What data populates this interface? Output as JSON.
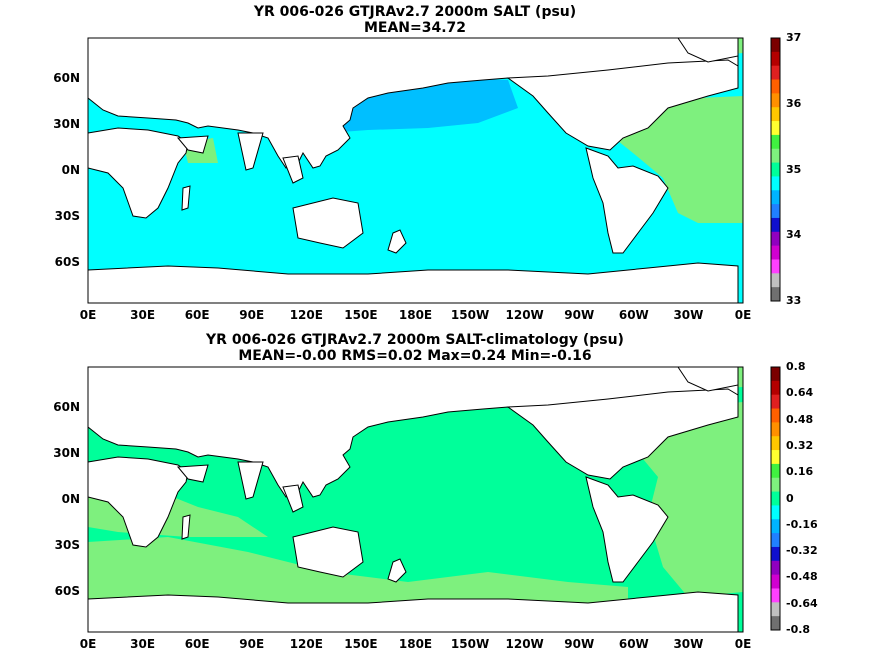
{
  "panel_top": {
    "title_line1": "YR 006-026 GTJRAv2.7 2000m SALT (psu)",
    "title_line2": "MEAN=34.72",
    "y_ticks": [
      "60N",
      "30N",
      "0N",
      "30S",
      "60S"
    ],
    "x_ticks": [
      "0E",
      "30E",
      "60E",
      "90E",
      "120E",
      "150E",
      "180E",
      "150W",
      "120W",
      "90W",
      "60W",
      "30W",
      "0E"
    ],
    "colorbar_labels": [
      "37",
      "36",
      "35",
      "34",
      "33"
    ],
    "colorbar_colors": [
      "#7a0000",
      "#b40000",
      "#e02020",
      "#ff6000",
      "#ff9000",
      "#ffc800",
      "#ffff30",
      "#40f040",
      "#7ef07e",
      "#00ff9a",
      "#00ffff",
      "#00b4ff",
      "#2080ff",
      "#1010d0",
      "#9000c0",
      "#d000d0",
      "#ff40ff",
      "#c0c0c0",
      "#707070"
    ]
  },
  "panel_bottom": {
    "title_line1": "YR 006-026 GTJRAv2.7 2000m SALT-climatology (psu)",
    "title_line2": "MEAN=-0.00   RMS=0.02   Max=0.24   Min=-0.16",
    "y_ticks": [
      "60N",
      "30N",
      "0N",
      "30S",
      "60S"
    ],
    "x_ticks": [
      "0E",
      "30E",
      "60E",
      "90E",
      "120E",
      "150E",
      "180E",
      "150W",
      "120W",
      "90W",
      "60W",
      "30W",
      "0E"
    ],
    "colorbar_labels": [
      "0.8",
      "0.64",
      "0.48",
      "0.32",
      "0.16",
      "0",
      "-0.16",
      "-0.32",
      "-0.48",
      "-0.64",
      "-0.8"
    ],
    "colorbar_colors": [
      "#7a0000",
      "#b40000",
      "#e02020",
      "#ff6000",
      "#ff9000",
      "#ffc800",
      "#ffff30",
      "#40f040",
      "#7ef07e",
      "#00ff9a",
      "#00ffff",
      "#00b4ff",
      "#2080ff",
      "#1010d0",
      "#9000c0",
      "#d000d0",
      "#ff40ff",
      "#c0c0c0",
      "#707070"
    ]
  },
  "colors": {
    "land": "#ffffff",
    "coast": "#000000",
    "top_main": "#00ffff",
    "top_pacific_north": "#00bfff",
    "top_atlantic": "#7ef07e",
    "bottom_main": "#00ff9a",
    "bottom_patch": "#7ef07e"
  }
}
